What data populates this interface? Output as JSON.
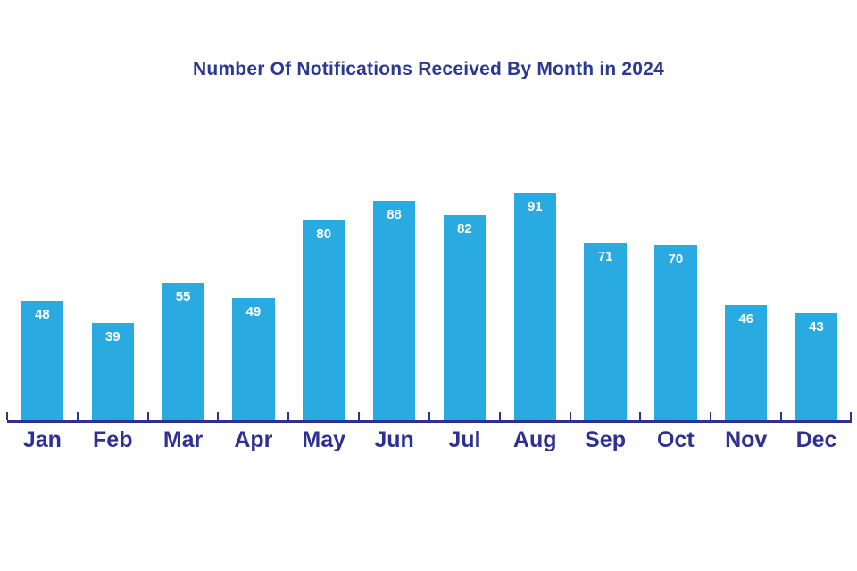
{
  "page": {
    "background": "#FFFFFF"
  },
  "chart_data": {
    "type": "bar",
    "title": "Number Of Notifications Received By Month in 2024",
    "categories": [
      "Jan",
      "Feb",
      "Mar",
      "Apr",
      "May",
      "Jun",
      "Jul",
      "Aug",
      "Sep",
      "Oct",
      "Nov",
      "Dec"
    ],
    "values": [
      48,
      39,
      55,
      49,
      80,
      88,
      82,
      91,
      71,
      70,
      46,
      43
    ],
    "xlabel": "",
    "ylabel": "",
    "ylim": [
      0,
      100
    ],
    "grid": false,
    "legend_position": "none",
    "data_labels": "inside-top",
    "colors": {
      "bar": "#29ABE2",
      "value_label": "#FFFFFF",
      "axis": "#2E3192",
      "category_label": "#2E3192",
      "title": "#2B3990"
    }
  }
}
